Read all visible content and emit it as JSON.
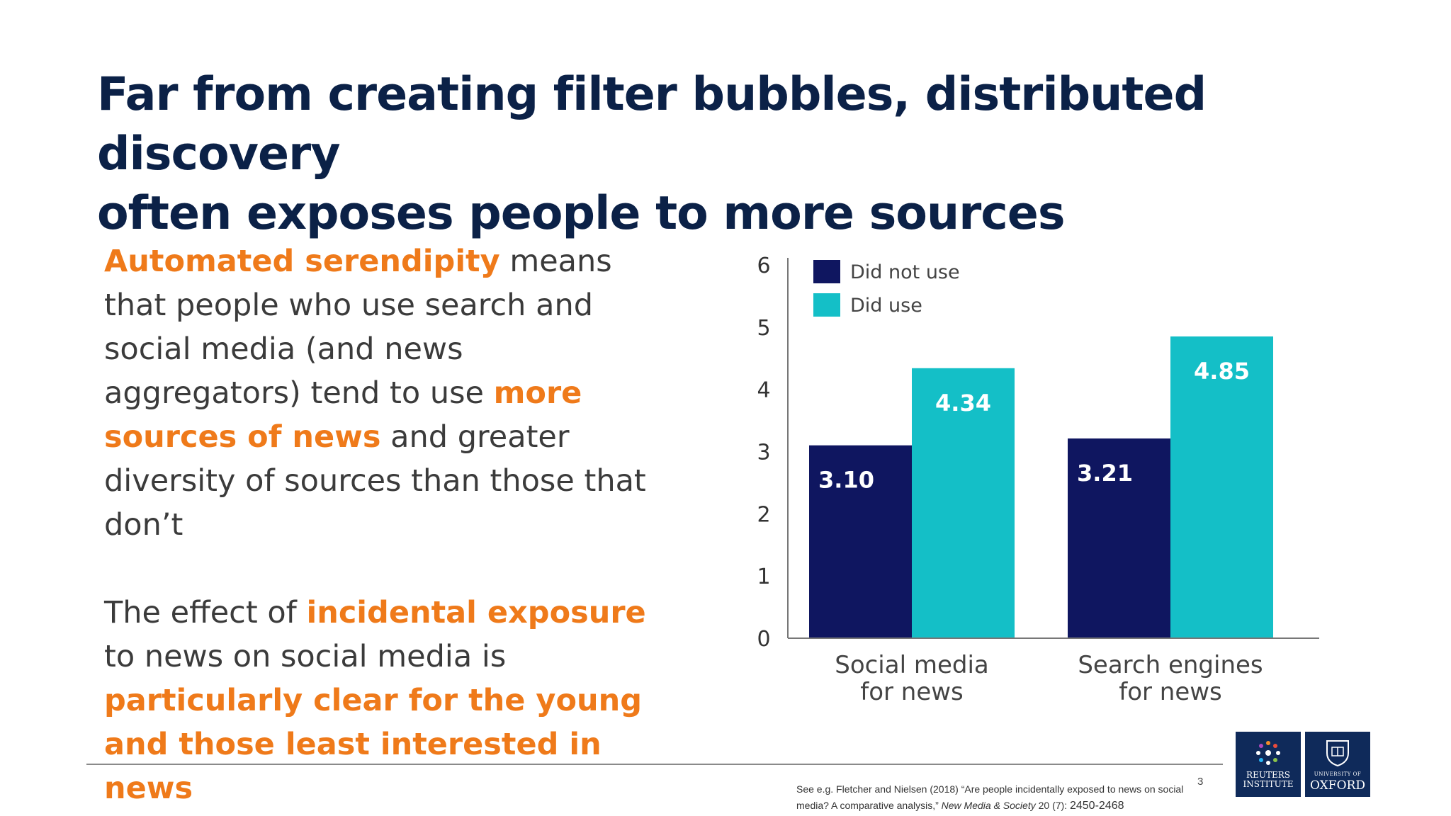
{
  "slide": {
    "title_line1": "Far from creating filter bubbles, distributed discovery",
    "title_line2": "often exposes people to more sources",
    "para1": {
      "highlight1": "Automated serendipity",
      "text1": " means that people who use search and social media (and news aggregators) tend to use ",
      "highlight2": "more sources of news",
      "text2": " and greater diversity of sources than those that don’t"
    },
    "para2": {
      "text1": "The effect of ",
      "highlight1": "incidental exposure",
      "text2": " to news on social media is ",
      "highlight2": "particularly clear for the young and those least interested in news"
    },
    "page_number": "3",
    "citation": {
      "text1": "See e.g. Fletcher and Nielsen (2018) “Are people incidentally exposed to news on social media? A comparative analysis,” ",
      "journal": "New Media & Society",
      "text2": " 20 (7): ",
      "pages": "2450-2468"
    },
    "logos": {
      "reuters_line1": "REUTERS",
      "reuters_line2": "INSTITUTE",
      "oxford_line1": "UNIVERSITY OF",
      "oxford_line2": "OXFORD"
    }
  },
  "chart_data": {
    "type": "bar",
    "categories": [
      [
        "Social media",
        "for news"
      ],
      [
        "Search engines",
        "for news"
      ]
    ],
    "series": [
      {
        "name": "Did not use",
        "values": [
          3.1,
          3.21
        ],
        "color": "#0f1660"
      },
      {
        "name": "Did use",
        "values": [
          4.34,
          4.85
        ],
        "color": "#14bfc7"
      }
    ],
    "value_labels": [
      [
        "3.10",
        "3.21"
      ],
      [
        "4.34",
        "4.85"
      ]
    ],
    "ylim": [
      0,
      6
    ],
    "yticks": [
      "0",
      "1",
      "2",
      "3",
      "4",
      "5",
      "6"
    ],
    "legend_position": "top-left",
    "grid": false
  }
}
